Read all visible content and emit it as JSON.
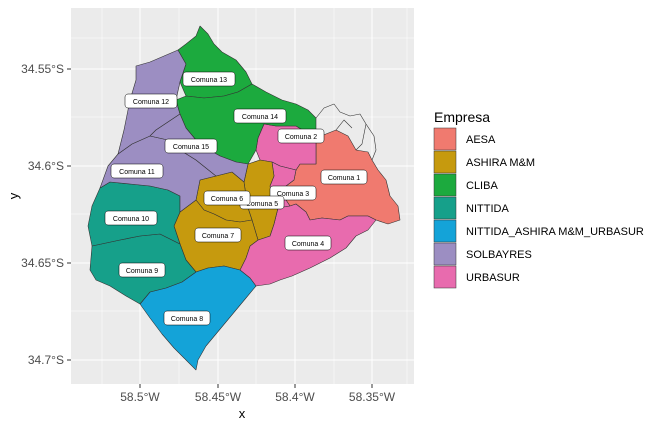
{
  "axes": {
    "x_title": "x",
    "y_title": "y",
    "x_ticks": [
      "58.5°W",
      "58.45°W",
      "58.4°W",
      "58.35°W"
    ],
    "y_ticks": [
      "34.55°S",
      "34.6°S",
      "34.65°S",
      "34.7°S"
    ]
  },
  "legend": {
    "title": "Empresa",
    "items": [
      {
        "label": "AESA",
        "color": "#F07A6F"
      },
      {
        "label": "ASHIRA M&M",
        "color": "#C69A0E"
      },
      {
        "label": "CLIBA",
        "color": "#1CAA3E"
      },
      {
        "label": "NITTIDA",
        "color": "#16A08A"
      },
      {
        "label": "NITTIDA_ASHIRA M&M_URBASUR",
        "color": "#14A3D8"
      },
      {
        "label": "SOLBAYRES",
        "color": "#9C8EC2"
      },
      {
        "label": "URBASUR",
        "color": "#E86BAE"
      }
    ]
  },
  "map": {
    "panel_background": "#EBEBEB",
    "grid_color": "#FFFFFF",
    "comunas": [
      {
        "name": "Comuna 1",
        "label": "Comuna 1",
        "empresa": "AESA"
      },
      {
        "name": "Comuna 2",
        "label": "Comuna 2",
        "empresa": "URBASUR"
      },
      {
        "name": "Comuna 3",
        "label": "Comuna 3",
        "empresa": "URBASUR"
      },
      {
        "name": "Comuna 4",
        "label": "Comuna 4",
        "empresa": "URBASUR"
      },
      {
        "name": "Comuna 5",
        "label": "Comuna 5",
        "empresa": "ASHIRA M&M"
      },
      {
        "name": "Comuna 6",
        "label": "Comuna 6",
        "empresa": "ASHIRA M&M"
      },
      {
        "name": "Comuna 7",
        "label": "Comuna 7",
        "empresa": "ASHIRA M&M"
      },
      {
        "name": "Comuna 8",
        "label": "Comuna 8",
        "empresa": "NITTIDA_ASHIRA M&M_URBASUR"
      },
      {
        "name": "Comuna 9",
        "label": "Comuna 9",
        "empresa": "NITTIDA"
      },
      {
        "name": "Comuna 10",
        "label": "Comuna 10",
        "empresa": "NITTIDA"
      },
      {
        "name": "Comuna 11",
        "label": "Comuna 11",
        "empresa": "SOLBAYRES"
      },
      {
        "name": "Comuna 12",
        "label": "Comuna 12",
        "empresa": "SOLBAYRES"
      },
      {
        "name": "Comuna 13",
        "label": "Comuna 13",
        "empresa": "CLIBA"
      },
      {
        "name": "Comuna 14",
        "label": "Comuna 14",
        "empresa": "CLIBA"
      },
      {
        "name": "Comuna 15",
        "label": "Comuna 15",
        "empresa": "SOLBAYRES"
      }
    ]
  }
}
